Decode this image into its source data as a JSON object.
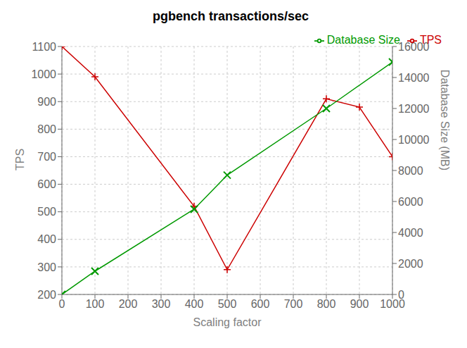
{
  "chart_data": {
    "type": "line",
    "title": "pgbench transactions/sec",
    "xlabel": "Scaling factor",
    "ylabel": "TPS",
    "y2label": "Database Size (MB)",
    "series": [
      {
        "name": "TPS",
        "color": "#cc0000",
        "marker": "plus",
        "x": [
          0,
          100,
          400,
          500,
          800,
          900,
          1000
        ],
        "values": [
          1100,
          990,
          520,
          290,
          910,
          880,
          700
        ]
      },
      {
        "name": "Database Size",
        "color": "#009900",
        "marker": "x",
        "axis": "y2",
        "x": [
          0,
          100,
          400,
          500,
          800,
          1000
        ],
        "values": [
          0,
          1500,
          5500,
          7700,
          12000,
          15000
        ]
      }
    ],
    "xlim": [
      0,
      1000
    ],
    "xticks": [
      0,
      100,
      200,
      300,
      400,
      500,
      600,
      700,
      800,
      900,
      1000
    ],
    "ylim": [
      200,
      1100
    ],
    "yticks": [
      200,
      300,
      400,
      500,
      600,
      700,
      800,
      900,
      1000,
      1100
    ],
    "y2lim": [
      0,
      16000
    ],
    "y2ticks": [
      0,
      2000,
      4000,
      6000,
      8000,
      10000,
      12000,
      14000,
      16000
    ],
    "grid": true,
    "legend": "upper right"
  }
}
